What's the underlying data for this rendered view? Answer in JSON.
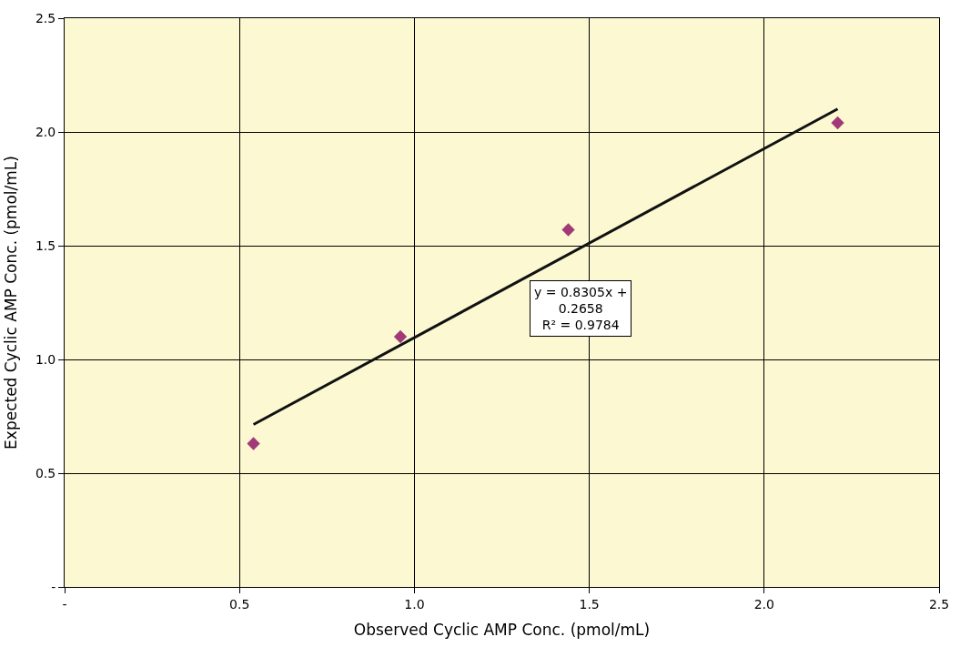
{
  "chart_data": {
    "type": "scatter",
    "xlabel": "Observed Cyclic AMP Conc. (pmol/mL)",
    "ylabel": "Expected Cyclic AMP Conc. (pmol/mL)",
    "xlim": [
      0,
      2.5
    ],
    "ylim": [
      0,
      2.5
    ],
    "xticks": [
      {
        "value": 0,
        "label": "-"
      },
      {
        "value": 0.5,
        "label": "0.5"
      },
      {
        "value": 1,
        "label": "1.0"
      },
      {
        "value": 1.5,
        "label": "1.5"
      },
      {
        "value": 2,
        "label": "2.0"
      },
      {
        "value": 2.5,
        "label": "2.5"
      }
    ],
    "yticks": [
      {
        "value": 0,
        "label": "-"
      },
      {
        "value": 0.5,
        "label": "0.5"
      },
      {
        "value": 1,
        "label": "1.0"
      },
      {
        "value": 1.5,
        "label": "1.5"
      },
      {
        "value": 2,
        "label": "2.0"
      },
      {
        "value": 2.5,
        "label": "2.5"
      }
    ],
    "grid": true,
    "series": [
      {
        "marker": "diamond",
        "color": "#a23a78",
        "x": [
          0.54,
          0.96,
          1.44,
          2.21
        ],
        "values": [
          0.63,
          1.1,
          1.57,
          2.04
        ]
      },
      {
        "type": "line",
        "marker": "none",
        "line_style": "solid",
        "color": "#111111",
        "x": [
          0.54,
          2.21
        ],
        "values": [
          0.714,
          2.101
        ]
      }
    ],
    "annotations": [
      "y = 0.8305x +\n0.2658\nR² = 0.9784"
    ]
  }
}
